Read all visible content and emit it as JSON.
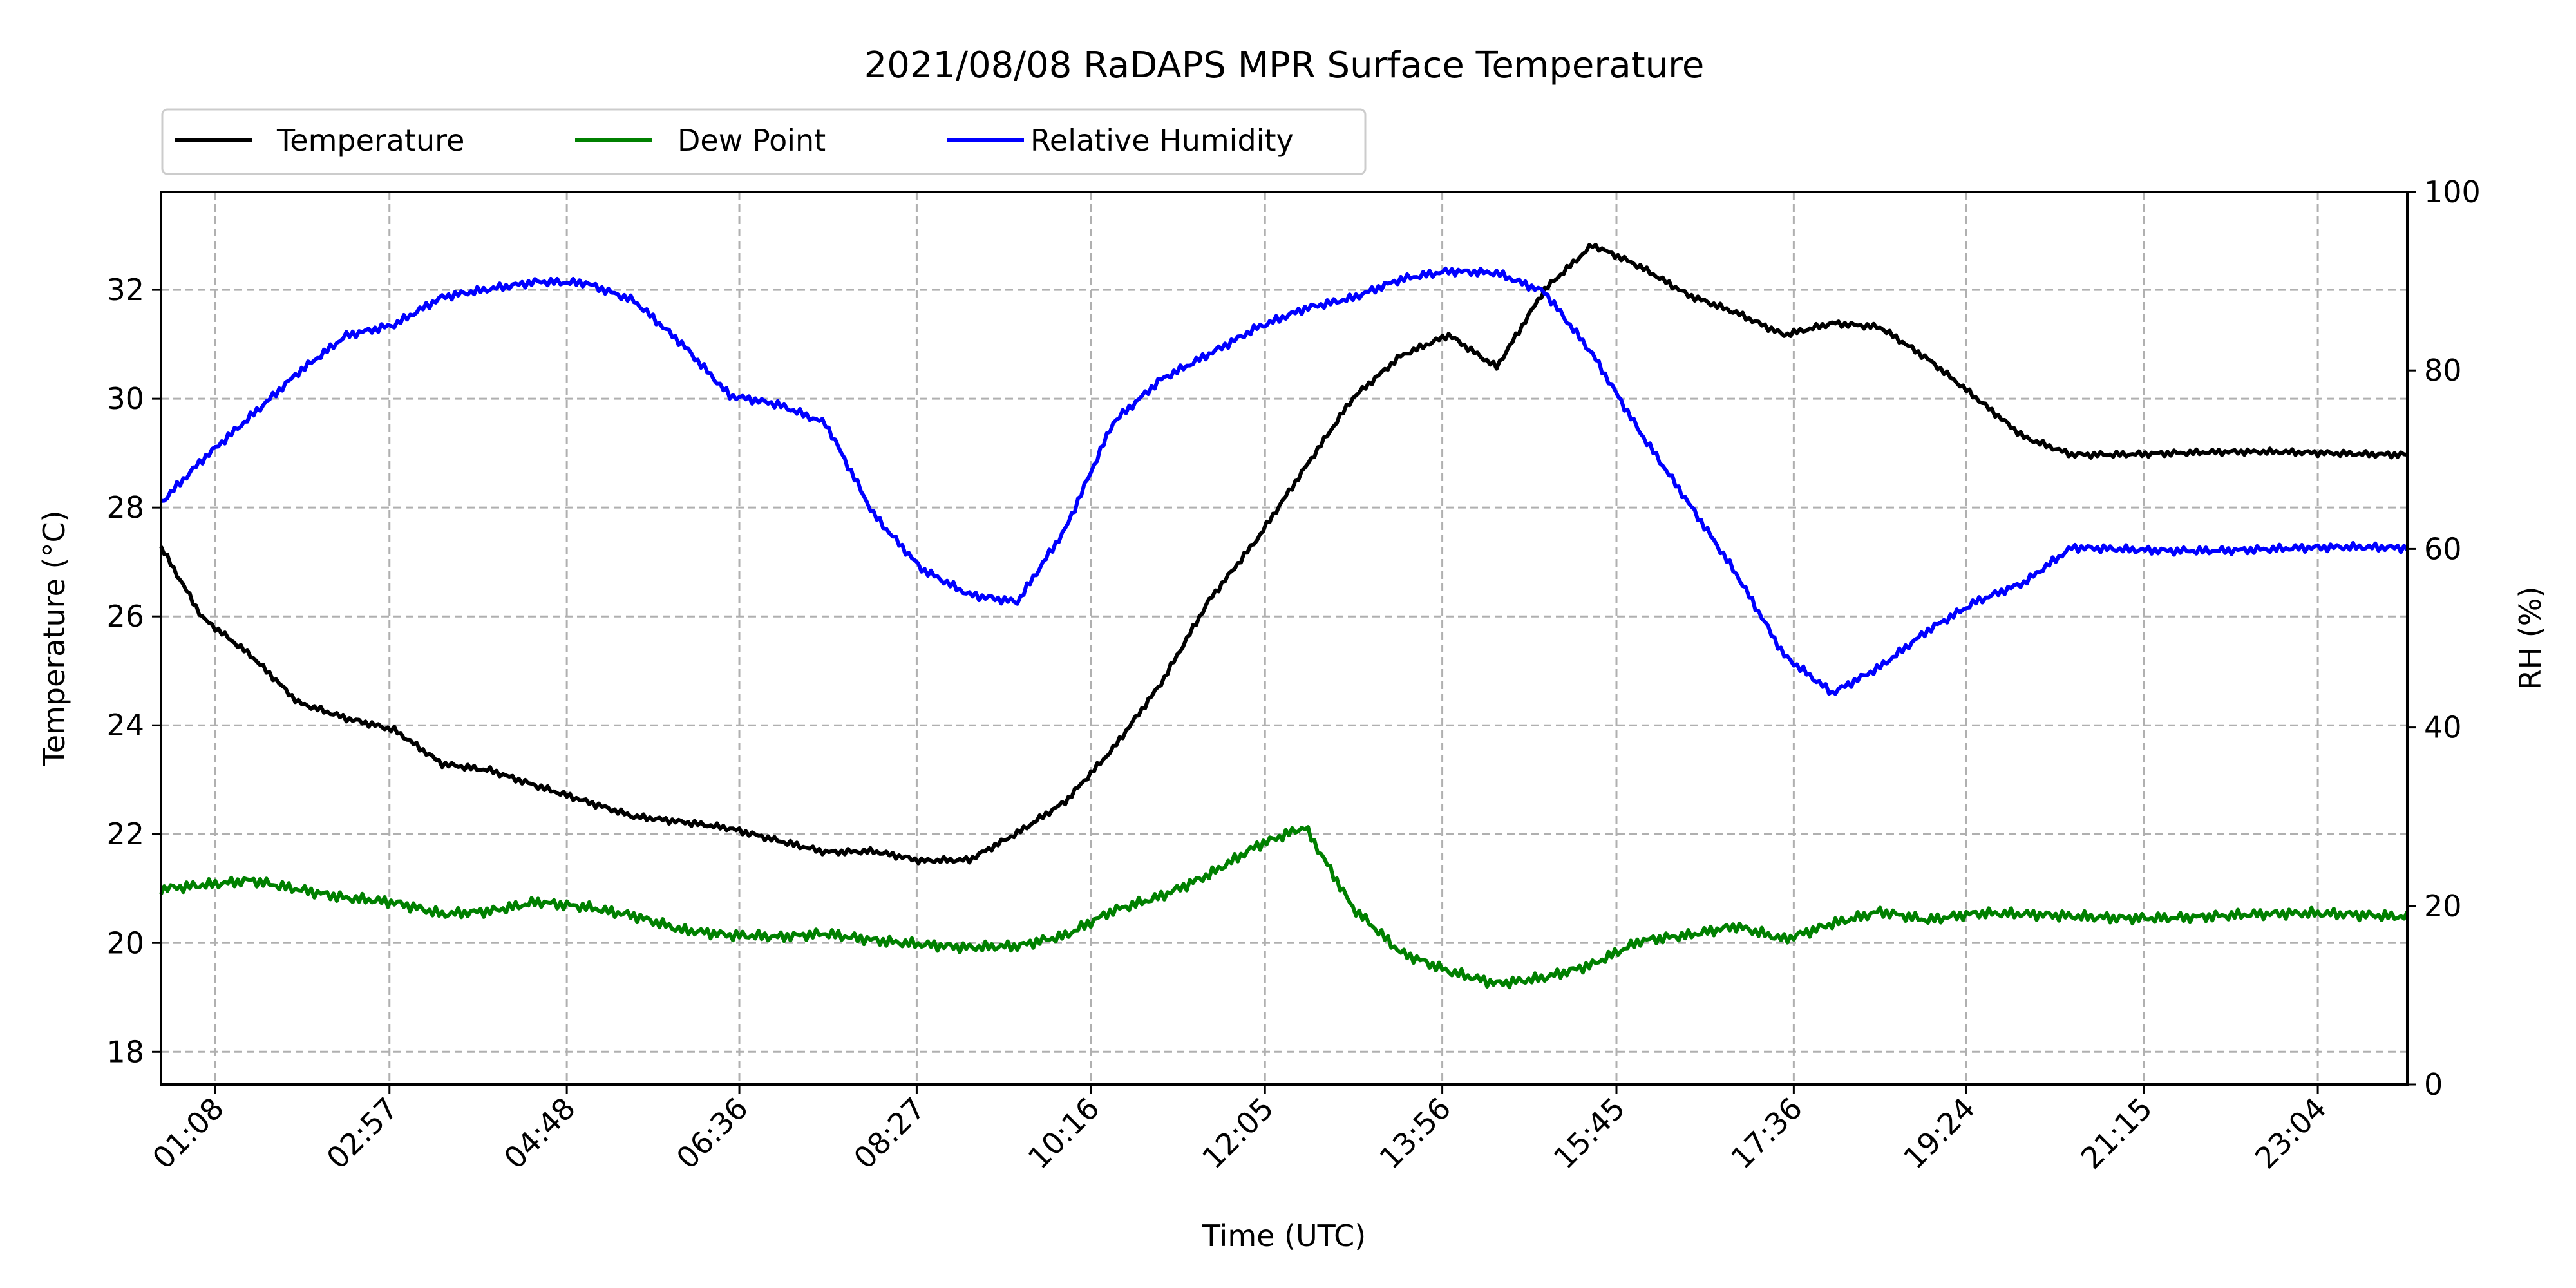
{
  "chart_data": {
    "type": "line",
    "title": "2021/08/08 RaDAPS MPR Surface Temperature",
    "xlabel": "Time (UTC)",
    "ylabel": "Temperature ($^\\circ$C)",
    "ylabel_display": "Temperature (°C)",
    "y2label": "RH (%)",
    "x_domain": [
      "00:34",
      "24:00"
    ],
    "ylim": [
      17.4,
      33.8
    ],
    "y2lim": [
      0,
      100
    ],
    "xticks": [
      "01:08",
      "02:57",
      "04:48",
      "06:36",
      "08:27",
      "10:16",
      "12:05",
      "13:56",
      "15:45",
      "17:36",
      "19:24",
      "21:15",
      "23:04"
    ],
    "yticks": [
      18,
      20,
      22,
      24,
      26,
      28,
      30,
      32
    ],
    "y2ticks": [
      0,
      20,
      40,
      60,
      80,
      100
    ],
    "grid": true,
    "legend_position": "above-left",
    "x": [
      "00:34",
      "01:00",
      "01:30",
      "02:00",
      "02:30",
      "03:00",
      "03:30",
      "04:00",
      "04:30",
      "05:00",
      "05:30",
      "06:00",
      "06:30",
      "07:00",
      "07:30",
      "08:00",
      "08:30",
      "09:00",
      "09:30",
      "10:00",
      "10:30",
      "11:00",
      "11:30",
      "12:00",
      "12:30",
      "13:00",
      "13:30",
      "14:00",
      "14:30",
      "15:00",
      "15:30",
      "16:00",
      "16:30",
      "17:00",
      "17:30",
      "18:00",
      "18:30",
      "19:00",
      "19:30",
      "20:00",
      "20:30",
      "21:00",
      "21:30",
      "22:00",
      "22:30",
      "23:00",
      "23:30",
      "24:00"
    ],
    "series": [
      {
        "name": "Temperature",
        "color": "#000000",
        "axis": "left",
        "values": [
          27.3,
          26.0,
          25.3,
          24.4,
          24.1,
          23.9,
          23.3,
          23.2,
          22.9,
          22.6,
          22.3,
          22.2,
          22.1,
          21.9,
          21.7,
          21.7,
          21.5,
          21.5,
          22.0,
          22.6,
          23.6,
          24.8,
          26.3,
          27.4,
          28.7,
          30.0,
          30.8,
          31.2,
          30.6,
          32.0,
          32.8,
          32.4,
          31.9,
          31.6,
          31.2,
          31.4,
          31.3,
          30.7,
          30.0,
          29.3,
          29.0,
          29.0,
          29.0,
          29.0,
          29.0,
          29.0,
          29.0,
          29.0
        ]
      },
      {
        "name": "Dew Point",
        "color": "#008000",
        "axis": "left",
        "values": [
          21.0,
          21.1,
          21.2,
          21.0,
          20.8,
          20.7,
          20.5,
          20.6,
          20.8,
          20.7,
          20.5,
          20.2,
          20.1,
          20.1,
          20.2,
          20.1,
          20.0,
          19.9,
          19.9,
          20.1,
          20.6,
          20.9,
          21.3,
          21.8,
          22.1,
          20.6,
          19.8,
          19.5,
          19.3,
          19.4,
          19.6,
          20.0,
          20.1,
          20.3,
          20.1,
          20.4,
          20.6,
          20.4,
          20.5,
          20.5,
          20.5,
          20.5,
          20.5,
          20.5,
          20.5,
          20.5,
          20.5,
          20.5
        ]
      },
      {
        "name": "Relative Humidity",
        "color": "#0000ff",
        "axis": "right",
        "values": [
          65,
          70,
          75,
          80,
          84,
          85,
          88,
          89,
          90,
          90,
          88,
          83,
          77,
          76,
          74,
          64,
          58,
          55,
          54,
          62,
          74,
          79,
          82,
          85,
          87,
          88,
          90,
          91,
          91,
          89,
          82,
          73,
          65,
          57,
          48,
          44,
          47,
          51,
          54,
          56,
          60,
          60,
          60,
          60,
          60,
          60,
          60,
          60
        ]
      }
    ]
  }
}
